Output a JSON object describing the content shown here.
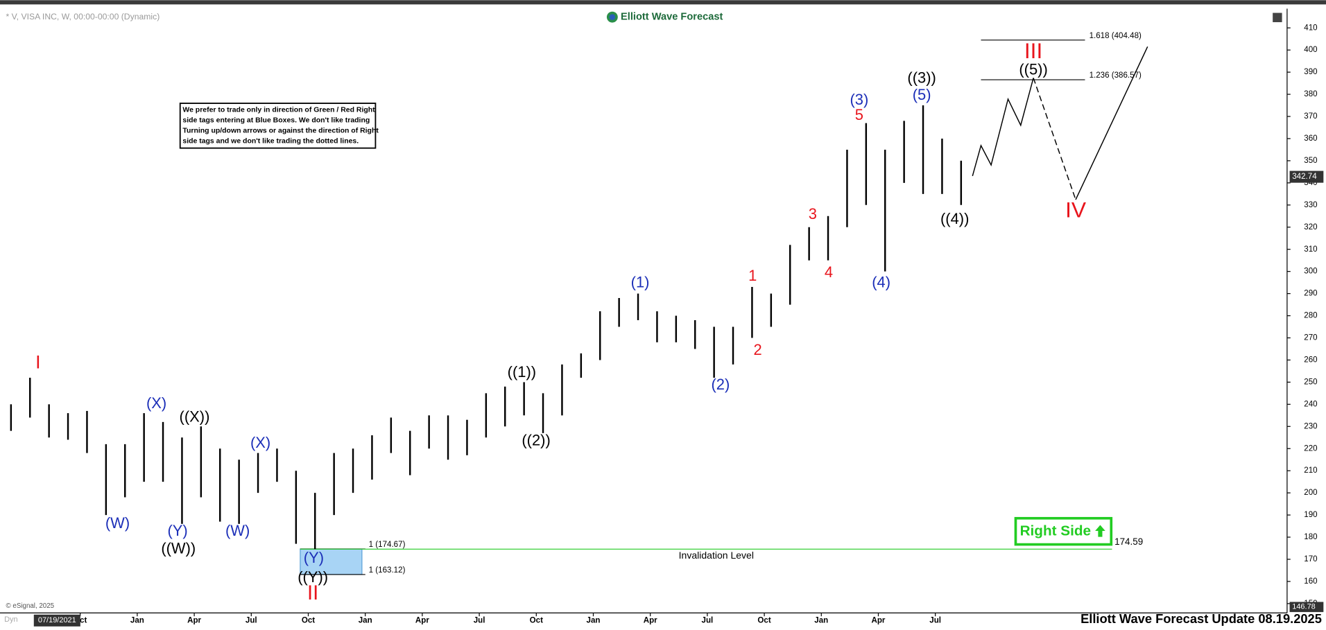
{
  "header": {
    "symbol": "* V, VISA INC, W, 00:00-00:00 (Dynamic)",
    "logo": "Elliott Wave Forecast",
    "copyright": "© eSignal, 2025",
    "footer": "Elliott Wave Forecast Update 08.19.2025",
    "cursor_date": "07/19/2021",
    "dyn": "Dyn"
  },
  "note": [
    "We prefer to trade only in direction of Green / Red Right",
    "side tags entering at Blue Boxes. We don't like trading",
    "Turning up/down arrows or against the direction of Right",
    "side tags and we don't like trading the dotted lines."
  ],
  "chart_data": {
    "type": "ohlc",
    "categories": [
      null,
      null,
      null,
      null,
      "Oct",
      null,
      null,
      "Jan",
      null,
      null,
      "Apr",
      null,
      null,
      "Jul",
      null,
      null,
      "Oct",
      null,
      null,
      "Jan",
      null,
      null,
      "Apr",
      null,
      null,
      "Jul",
      null,
      null,
      "Oct",
      null,
      null,
      "Jan",
      null,
      null,
      "Apr",
      null,
      null,
      "Jul",
      null,
      null,
      "Oct",
      null,
      null,
      "Jan",
      null,
      null,
      "Apr",
      null,
      null,
      "Jul",
      null
    ],
    "low": [
      228,
      234,
      225,
      224,
      218,
      190,
      198,
      205,
      205,
      186,
      198,
      187,
      186,
      200,
      205,
      177,
      174.6,
      190,
      200,
      206,
      218,
      208,
      220,
      215,
      217,
      225,
      230,
      235,
      227,
      235,
      252,
      260,
      275,
      278,
      268,
      268,
      265,
      252,
      258,
      270,
      275,
      285,
      305,
      305,
      320,
      330,
      300,
      340,
      335,
      335,
      330
    ],
    "high": [
      240,
      252,
      240,
      236,
      237,
      222,
      222,
      236,
      232,
      225,
      230,
      220,
      215,
      218,
      220,
      210,
      200,
      218,
      220,
      226,
      234,
      228,
      235,
      235,
      233,
      245,
      248,
      250,
      245,
      258,
      263,
      282,
      288,
      290,
      282,
      280,
      278,
      275,
      275,
      293,
      290,
      312,
      320,
      325,
      355,
      367,
      355,
      368,
      375,
      360,
      350
    ],
    "color": "#000000",
    "ylim": [
      146.78,
      418
    ],
    "yticks": [
      150,
      160,
      170,
      180,
      190,
      200,
      210,
      220,
      230,
      240,
      250,
      260,
      270,
      280,
      290,
      300,
      310,
      320,
      330,
      340,
      350,
      360,
      370,
      380,
      390,
      400,
      410
    ],
    "last_price": 342.74,
    "axis_min": 146.78,
    "fib_levels": [
      {
        "label": "1.618 (404.48)",
        "value": 404.48
      },
      {
        "label": "1.236 (386.57)",
        "value": 386.57
      },
      {
        "label": "1 (174.67)",
        "value": 174.67
      },
      {
        "label": "1 (163.12)",
        "value": 163.12
      }
    ],
    "invalidation": {
      "label": "Invalidation Level",
      "value": 174.59,
      "color": "#22cc22"
    },
    "right_side_tag": "Right Side",
    "wave_labels": [
      {
        "text": "I",
        "color": "#e8141c"
      },
      {
        "text": "(W)",
        "color": "#1c2fb8"
      },
      {
        "text": "(X)",
        "color": "#1c2fb8"
      },
      {
        "text": "((X))",
        "color": "#000000"
      },
      {
        "text": "(Y)",
        "color": "#1c2fb8"
      },
      {
        "text": "((W))",
        "color": "#000000"
      },
      {
        "text": "(W)",
        "color": "#1c2fb8"
      },
      {
        "text": "(X)",
        "color": "#1c2fb8"
      },
      {
        "text": "(Y)",
        "color": "#1c2fb8"
      },
      {
        "text": "((Y))",
        "color": "#000000"
      },
      {
        "text": "II",
        "color": "#e8141c"
      },
      {
        "text": "((1))",
        "color": "#000000"
      },
      {
        "text": "((2))",
        "color": "#000000"
      },
      {
        "text": "(1)",
        "color": "#1c2fb8"
      },
      {
        "text": "(2)",
        "color": "#1c2fb8"
      },
      {
        "text": "1",
        "color": "#e8141c"
      },
      {
        "text": "2",
        "color": "#e8141c"
      },
      {
        "text": "3",
        "color": "#e8141c"
      },
      {
        "text": "4",
        "color": "#e8141c"
      },
      {
        "text": "(3)",
        "color": "#1c2fb8"
      },
      {
        "text": "5",
        "color": "#e8141c"
      },
      {
        "text": "(4)",
        "color": "#1c2fb8"
      },
      {
        "text": "((3))",
        "color": "#000000"
      },
      {
        "text": "(5)",
        "color": "#1c2fb8"
      },
      {
        "text": "((4))",
        "color": "#000000"
      },
      {
        "text": "III",
        "color": "#e8141c"
      },
      {
        "text": "((5))",
        "color": "#000000"
      },
      {
        "text": "IV",
        "color": "#e8141c"
      }
    ]
  }
}
